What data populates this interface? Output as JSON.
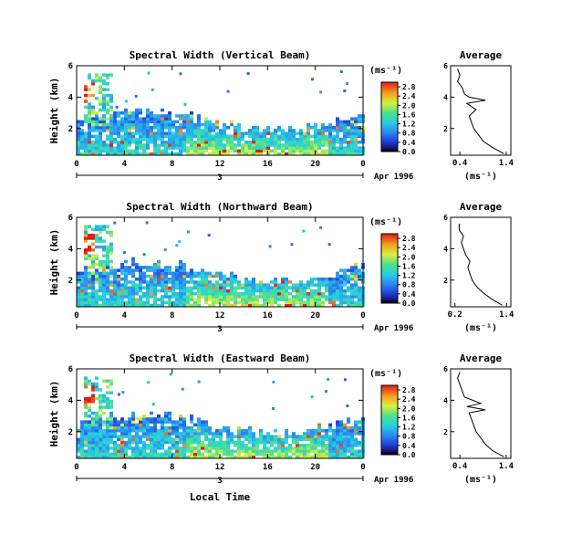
{
  "figure": {
    "x_axis_label": "Local Time",
    "date_label": "Apr 1996",
    "day_marker": "3",
    "y_axis_label": "Height (km)",
    "colorbar_unit_label": "(ms⁻¹)",
    "profile_unit_label": "(ms⁻¹)",
    "profile_title": "Average"
  },
  "chart_data": [
    {
      "type": "heatmap",
      "title": "Spectral Width (Vertical Beam)",
      "x_ticks": [
        "0",
        "4",
        "8",
        "12",
        "16",
        "20",
        "0"
      ],
      "y_ticks": [
        "2",
        "4",
        "6"
      ],
      "xlim": [
        0,
        24
      ],
      "ylim": [
        0.3,
        6
      ],
      "colorbar_ticks": [
        "0.0",
        "0.4",
        "0.8",
        "1.2",
        "1.6",
        "2.0",
        "2.4",
        "2.8"
      ],
      "colorbar_range": [
        0,
        3.0
      ],
      "profile": {
        "x_ticks": [
          "0.4",
          "1.4"
        ],
        "xlim": [
          0.2,
          1.5
        ],
        "y_ticks": [
          "2",
          "4",
          "6"
        ],
        "heights": [
          0.4,
          0.8,
          1.2,
          1.6,
          2.0,
          2.4,
          2.8,
          3.2,
          3.6,
          3.8,
          4.0,
          4.2,
          4.6,
          5.0,
          5.4,
          5.8
        ],
        "widths": [
          1.35,
          1.1,
          0.9,
          0.8,
          0.7,
          0.65,
          0.6,
          0.75,
          0.55,
          0.95,
          0.6,
          0.5,
          0.45,
          0.35,
          0.4,
          0.35
        ]
      }
    },
    {
      "type": "heatmap",
      "title": "Spectral Width (Northward Beam)",
      "x_ticks": [
        "0",
        "4",
        "8",
        "12",
        "16",
        "20",
        "0"
      ],
      "y_ticks": [
        "2",
        "4",
        "6"
      ],
      "xlim": [
        0,
        24
      ],
      "ylim": [
        0.3,
        6
      ],
      "colorbar_ticks": [
        "0.0",
        "0.4",
        "0.8",
        "1.2",
        "1.6",
        "2.0",
        "2.4",
        "2.8"
      ],
      "colorbar_range": [
        0,
        3.0
      ],
      "profile": {
        "x_ticks": [
          "0.2",
          "1.4"
        ],
        "xlim": [
          0.1,
          1.5
        ],
        "y_ticks": [
          "2",
          "4",
          "6"
        ],
        "heights": [
          0.4,
          0.8,
          1.2,
          1.6,
          2.0,
          2.4,
          2.8,
          3.2,
          3.6,
          4.0,
          4.4,
          4.8,
          5.2,
          5.6
        ],
        "widths": [
          1.3,
          1.05,
          0.85,
          0.7,
          0.6,
          0.55,
          0.5,
          0.55,
          0.45,
          0.4,
          0.35,
          0.4,
          0.3,
          0.3
        ]
      }
    },
    {
      "type": "heatmap",
      "title": "Spectral Width (Eastward Beam)",
      "x_ticks": [
        "0",
        "4",
        "8",
        "12",
        "16",
        "20",
        "0"
      ],
      "y_ticks": [
        "2",
        "4",
        "6"
      ],
      "xlim": [
        0,
        24
      ],
      "ylim": [
        0.3,
        6
      ],
      "colorbar_ticks": [
        "0.0",
        "0.4",
        "0.8",
        "1.2",
        "1.6",
        "2.0",
        "2.4",
        "2.8"
      ],
      "colorbar_range": [
        0,
        3.0
      ],
      "profile": {
        "x_ticks": [
          "0.4",
          "1.4"
        ],
        "xlim": [
          0.2,
          1.5
        ],
        "y_ticks": [
          "2",
          "4",
          "6"
        ],
        "heights": [
          0.4,
          0.8,
          1.2,
          1.6,
          2.0,
          2.4,
          2.8,
          3.2,
          3.4,
          3.6,
          3.8,
          4.2,
          4.6,
          5.0,
          5.4,
          5.8
        ],
        "widths": [
          1.35,
          1.1,
          0.95,
          0.85,
          0.75,
          0.7,
          0.65,
          0.6,
          0.95,
          0.55,
          0.85,
          0.5,
          0.45,
          0.4,
          0.35,
          0.4
        ]
      }
    }
  ]
}
